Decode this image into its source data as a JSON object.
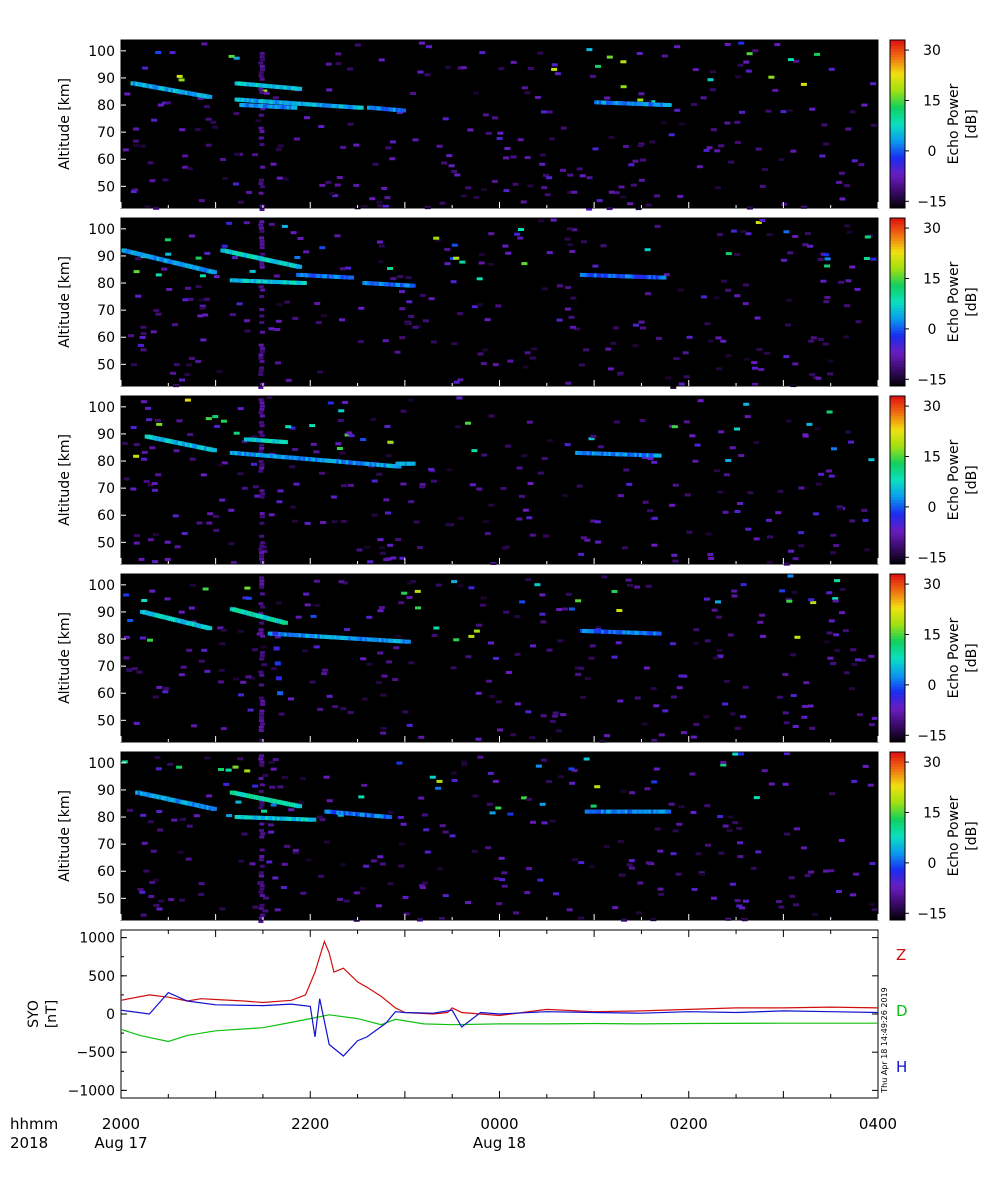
{
  "chart_data": [
    {
      "type": "heatmap",
      "panel": 1,
      "ylabel": "Altitude [km]",
      "ylim": [
        42,
        104
      ],
      "yticks": [
        "100",
        "90",
        "80",
        "70",
        "60",
        "50"
      ],
      "colorbar": {
        "label_line1": "Echo Power",
        "label_line2": "[dB]",
        "ticks": [
          "30",
          "15",
          "0",
          "−15"
        ],
        "range": [
          -17,
          33
        ]
      },
      "features": [
        {
          "t_start": 0.1,
          "t_end": 0.9,
          "alt_start": 88,
          "alt_end": 83,
          "db": 4
        },
        {
          "t_start": 1.2,
          "t_end": 1.85,
          "alt_start": 88,
          "alt_end": 86,
          "db": 6
        },
        {
          "t_start": 1.2,
          "t_end": 2.5,
          "alt_start": 82,
          "alt_end": 79,
          "db": 4
        },
        {
          "t_start": 1.25,
          "t_end": 1.8,
          "alt_start": 80,
          "alt_end": 79,
          "db": 2
        },
        {
          "t_start": 2.6,
          "t_end": 2.95,
          "alt_start": 79,
          "alt_end": 78,
          "db": 2
        },
        {
          "t_start": 5.0,
          "t_end": 5.75,
          "alt_start": 81,
          "alt_end": 80,
          "db": 2
        }
      ]
    },
    {
      "type": "heatmap",
      "panel": 2,
      "ylabel": "Altitude [km]",
      "ylim": [
        42,
        104
      ],
      "yticks": [
        "100",
        "90",
        "80",
        "70",
        "60",
        "50"
      ],
      "colorbar": {
        "label_line1": "Echo Power",
        "label_line2": "[dB]",
        "ticks": [
          "30",
          "15",
          "0",
          "−15"
        ],
        "range": [
          -17,
          33
        ]
      },
      "features": [
        {
          "t_start": 0.0,
          "t_end": 0.95,
          "alt_start": 92,
          "alt_end": 84,
          "db": 3
        },
        {
          "t_start": 1.05,
          "t_end": 1.85,
          "alt_start": 92,
          "alt_end": 86,
          "db": 7
        },
        {
          "t_start": 1.15,
          "t_end": 1.9,
          "alt_start": 81,
          "alt_end": 80,
          "db": 6
        },
        {
          "t_start": 1.85,
          "t_end": 2.4,
          "alt_start": 83,
          "alt_end": 82,
          "db": 1
        },
        {
          "t_start": 2.55,
          "t_end": 3.05,
          "alt_start": 80,
          "alt_end": 79,
          "db": 1
        },
        {
          "t_start": 4.85,
          "t_end": 5.7,
          "alt_start": 83,
          "alt_end": 82,
          "db": 0
        }
      ]
    },
    {
      "type": "heatmap",
      "panel": 3,
      "ylabel": "Altitude [km]",
      "ylim": [
        42,
        104
      ],
      "yticks": [
        "100",
        "90",
        "80",
        "70",
        "60",
        "50"
      ],
      "colorbar": {
        "label_line1": "Echo Power",
        "label_line2": "[dB]",
        "ticks": [
          "30",
          "15",
          "0",
          "−15"
        ],
        "range": [
          -17,
          33
        ]
      },
      "features": [
        {
          "t_start": 0.25,
          "t_end": 0.95,
          "alt_start": 89,
          "alt_end": 84,
          "db": 5
        },
        {
          "t_start": 1.15,
          "t_end": 2.9,
          "alt_start": 83,
          "alt_end": 78,
          "db": 3
        },
        {
          "t_start": 1.3,
          "t_end": 1.7,
          "alt_start": 88,
          "alt_end": 87,
          "db": 7
        },
        {
          "t_start": 2.9,
          "t_end": 3.05,
          "alt_start": 79,
          "alt_end": 79,
          "db": 3
        },
        {
          "t_start": 4.8,
          "t_end": 5.65,
          "alt_start": 83,
          "alt_end": 82,
          "db": 2
        }
      ]
    },
    {
      "type": "heatmap",
      "panel": 4,
      "ylabel": "Altitude [km]",
      "ylim": [
        42,
        104
      ],
      "yticks": [
        "100",
        "90",
        "80",
        "70",
        "60",
        "50"
      ],
      "colorbar": {
        "label_line1": "Echo Power",
        "label_line2": "[dB]",
        "ticks": [
          "30",
          "15",
          "0",
          "−15"
        ],
        "range": [
          -17,
          33
        ]
      },
      "features": [
        {
          "t_start": 0.2,
          "t_end": 0.9,
          "alt_start": 90,
          "alt_end": 84,
          "db": 6
        },
        {
          "t_start": 1.15,
          "t_end": 1.7,
          "alt_start": 91,
          "alt_end": 86,
          "db": 8
        },
        {
          "t_start": 1.55,
          "t_end": 3.0,
          "alt_start": 82,
          "alt_end": 79,
          "db": 3
        },
        {
          "t_start": 1.6,
          "t_end": 1.65,
          "alt_start": 82,
          "alt_end": 60,
          "db": -2
        },
        {
          "t_start": 4.85,
          "t_end": 5.65,
          "alt_start": 83,
          "alt_end": 82,
          "db": 1
        }
      ]
    },
    {
      "type": "heatmap",
      "panel": 5,
      "ylabel": "Altitude [km]",
      "ylim": [
        42,
        104
      ],
      "yticks": [
        "100",
        "90",
        "80",
        "70",
        "60",
        "50"
      ],
      "colorbar": {
        "label_line1": "Echo Power",
        "label_line2": "[dB]",
        "ticks": [
          "30",
          "15",
          "0",
          "−15"
        ],
        "range": [
          -17,
          33
        ]
      },
      "features": [
        {
          "t_start": 0.15,
          "t_end": 0.95,
          "alt_start": 89,
          "alt_end": 83,
          "db": 3
        },
        {
          "t_start": 1.15,
          "t_end": 1.85,
          "alt_start": 89,
          "alt_end": 84,
          "db": 9
        },
        {
          "t_start": 1.2,
          "t_end": 2.0,
          "alt_start": 80,
          "alt_end": 79,
          "db": 6
        },
        {
          "t_start": 2.15,
          "t_end": 2.8,
          "alt_start": 82,
          "alt_end": 80,
          "db": 1
        },
        {
          "t_start": 4.9,
          "t_end": 5.75,
          "alt_start": 82,
          "alt_end": 82,
          "db": 2
        }
      ]
    },
    {
      "type": "line",
      "panel": 6,
      "ylabel_line1": "SYO",
      "ylabel_line2": "[nT]",
      "ylim": [
        -1100,
        1100
      ],
      "yticks": [
        "1000",
        "500",
        "0",
        "−500",
        "−1000"
      ],
      "x_unit": "hours after 2000 UT, Aug 17 2018",
      "series": [
        {
          "name": "Z",
          "color": "#d01010",
          "x": [
            0,
            0.3,
            0.5,
            0.7,
            0.85,
            1.0,
            1.3,
            1.5,
            1.8,
            1.95,
            2.05,
            2.15,
            2.2,
            2.25,
            2.35,
            2.5,
            2.6,
            2.75,
            2.9,
            3.0,
            3.3,
            3.45,
            3.5,
            3.6,
            3.8,
            4.0,
            4.5,
            5.0,
            5.5,
            6.0,
            6.5,
            7.0,
            7.5,
            8.0
          ],
          "y": [
            180,
            250,
            220,
            170,
            200,
            190,
            170,
            150,
            180,
            250,
            550,
            950,
            800,
            550,
            600,
            420,
            350,
            230,
            80,
            20,
            0,
            20,
            80,
            20,
            0,
            -20,
            60,
            30,
            40,
            60,
            80,
            80,
            90,
            80
          ]
        },
        {
          "name": "D",
          "color": "#10c010",
          "x": [
            0,
            0.2,
            0.5,
            0.7,
            1.0,
            1.5,
            1.8,
            2.0,
            2.2,
            2.5,
            2.75,
            2.9,
            3.2,
            3.5,
            4.0,
            4.5,
            5.0,
            5.5,
            6.0,
            7.0,
            8.0
          ],
          "y": [
            -200,
            -280,
            -360,
            -280,
            -220,
            -180,
            -110,
            -60,
            -10,
            -60,
            -140,
            -70,
            -130,
            -140,
            -130,
            -130,
            -125,
            -130,
            -125,
            -120,
            -120
          ]
        },
        {
          "name": "H",
          "color": "#1010d0",
          "x": [
            0,
            0.3,
            0.5,
            0.7,
            1.0,
            1.5,
            1.8,
            2.0,
            2.05,
            2.1,
            2.2,
            2.35,
            2.5,
            2.6,
            2.8,
            2.9,
            3.0,
            3.3,
            3.5,
            3.6,
            3.8,
            4.0,
            4.5,
            5.0,
            5.5,
            6.0,
            6.5,
            7.0,
            7.5,
            8.0
          ],
          "y": [
            50,
            0,
            280,
            170,
            120,
            110,
            130,
            100,
            -300,
            200,
            -400,
            -550,
            -350,
            -300,
            -120,
            30,
            20,
            10,
            50,
            -170,
            20,
            0,
            30,
            20,
            10,
            30,
            20,
            40,
            30,
            20
          ]
        }
      ],
      "timestamp": "Thu Apr 18 14:49:26 2019"
    }
  ],
  "time_axis": {
    "ticks": [
      "2000",
      "2200",
      "0000",
      "0200",
      "0400"
    ],
    "dates": [
      "Aug 17",
      "",
      "Aug 18",
      "",
      ""
    ],
    "row_label_1": "hhmm",
    "row_label_2": "2018"
  },
  "colors": {
    "plot_background": "#000000",
    "text": "#000000",
    "colormap": [
      "#000000",
      "#3a0a6a",
      "#6a1cc0",
      "#1a2cf0",
      "#0a9af0",
      "#0ae0c0",
      "#10d060",
      "#a0e010",
      "#f0e010",
      "#f07010",
      "#e01010"
    ]
  }
}
